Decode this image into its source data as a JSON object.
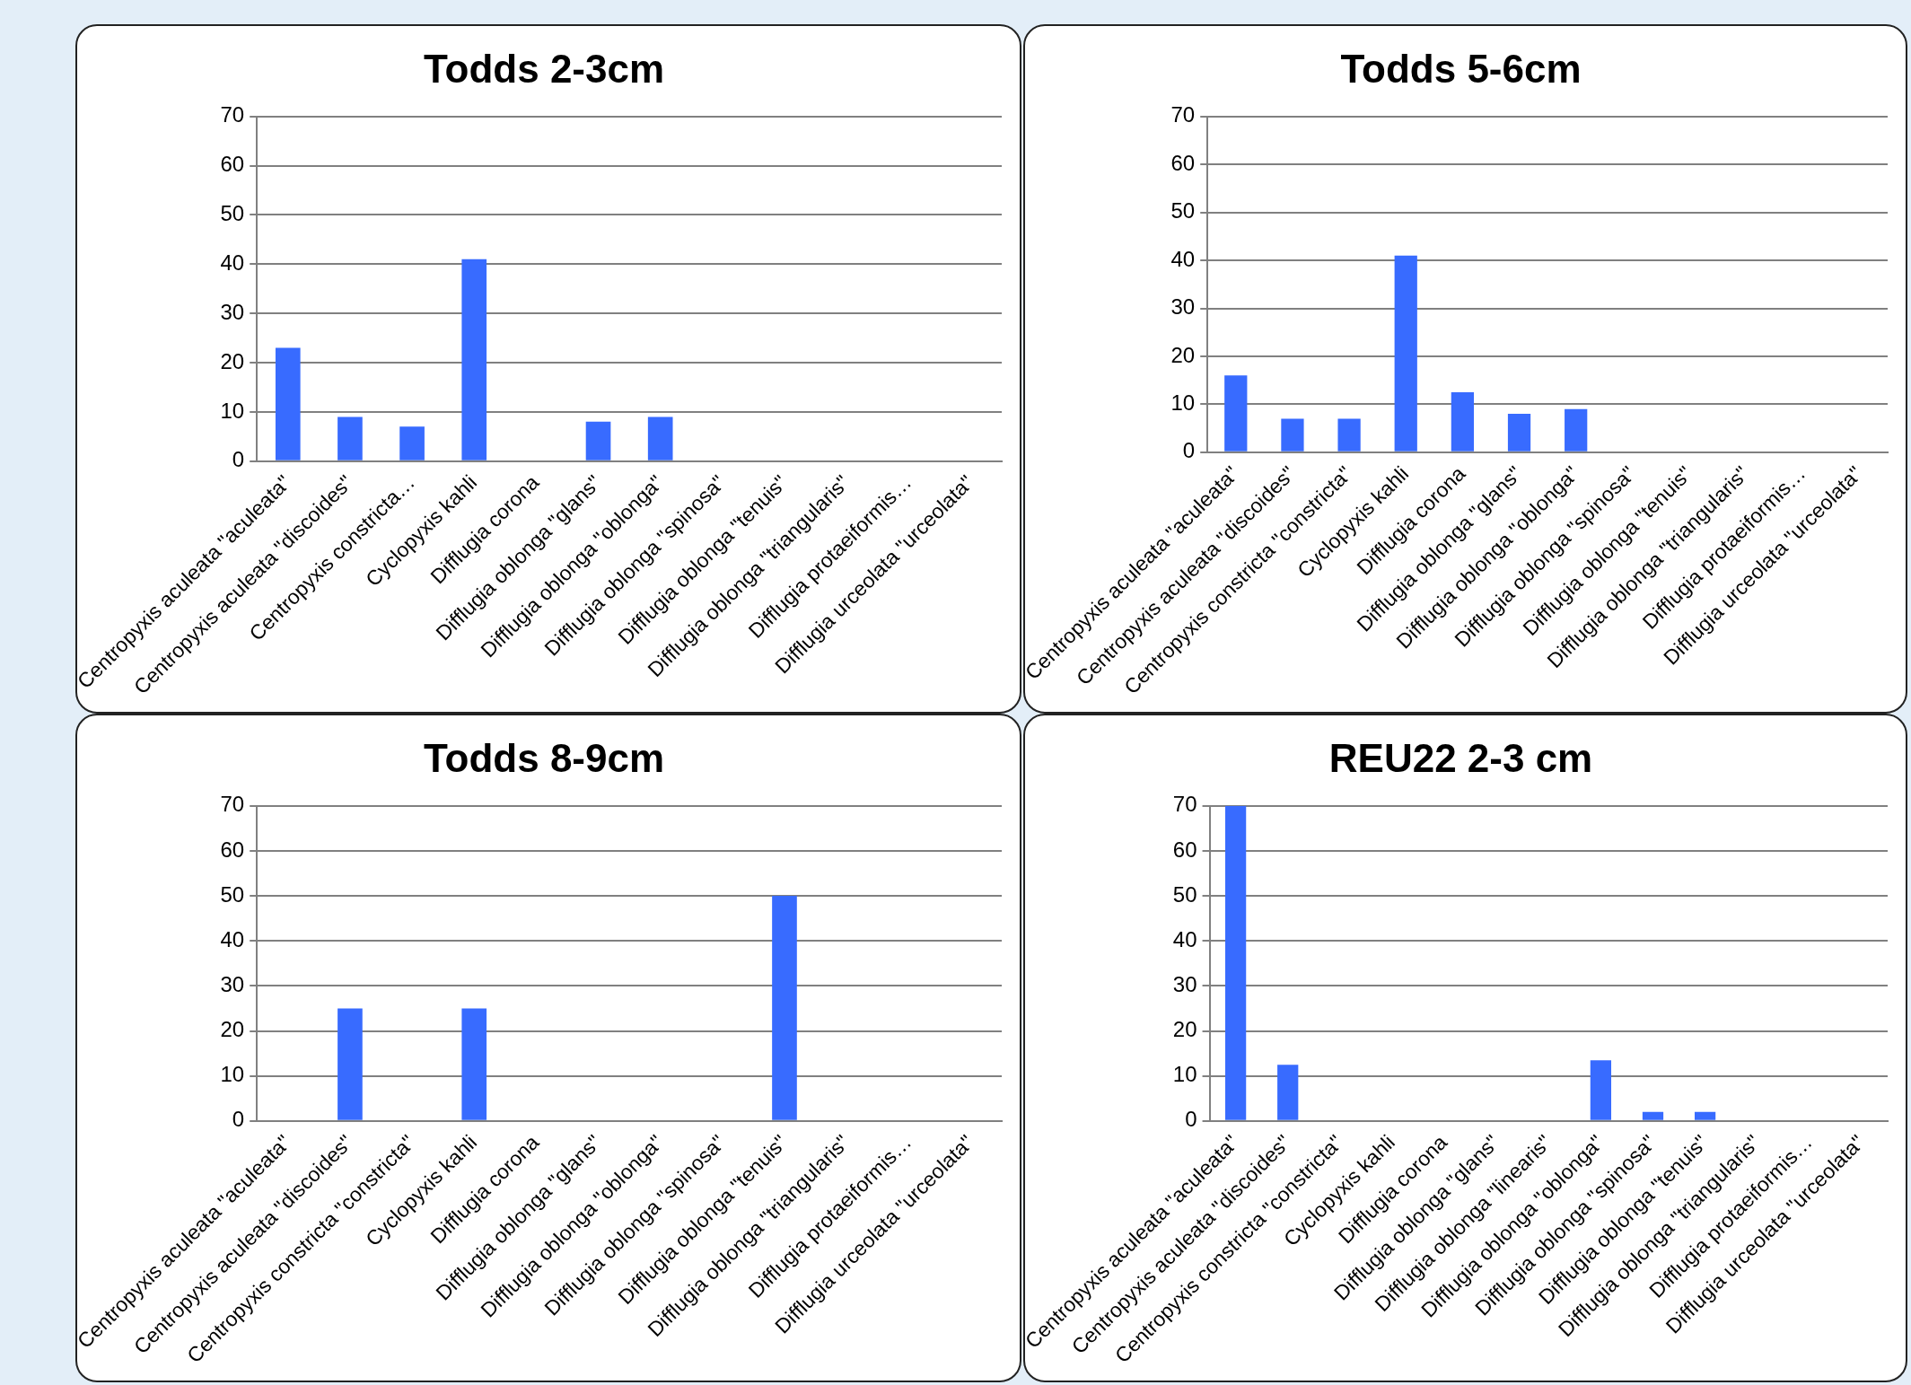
{
  "chart_data": [
    {
      "type": "bar",
      "title": "Todds 2-3cm",
      "categories": [
        "Centropyxis aculeata \"aculeata\"",
        "Centropyxis aculeata \"discoides\"",
        "Centropyxis constricta…",
        "Cyclopyxis kahli",
        "Difflugia corona",
        "Difflugia oblonga \"glans\"",
        "Difflugia oblonga \"oblonga\"",
        "Difflugia oblonga \"spinosa\"",
        "Difflugia oblonga \"tenuis\"",
        "Difflugia oblonga \"triangularis\"",
        "Difflugia protaeiformis…",
        "Difflugia urceolata \"urceolata\""
      ],
      "values": [
        23,
        9,
        7,
        41,
        0,
        8,
        9,
        0,
        0,
        0,
        0,
        0
      ],
      "color": "#386bff",
      "ylim": [
        0,
        70
      ],
      "yticks": [
        0,
        10,
        20,
        30,
        40,
        50,
        60,
        70
      ],
      "grid": "y"
    },
    {
      "type": "bar",
      "title": "Todds 5-6cm",
      "categories": [
        "Centropyxis aculeata \"aculeata\"",
        "Centropyxis aculeata \"discoides\"",
        "Centropyxis constricta \"constricta\"",
        "Cyclopyxis kahli",
        "Difflugia corona",
        "Difflugia oblonga \"glans\"",
        "Difflugia oblonga \"oblonga\"",
        "Difflugia oblonga \"spinosa\"",
        "Difflugia oblonga \"tenuis\"",
        "Difflugia oblonga \"triangularis\"",
        "Difflugia protaeiformis…",
        "Difflugia urceolata \"urceolata\""
      ],
      "values": [
        16,
        7,
        7,
        41,
        12.5,
        8,
        9,
        0,
        0,
        0,
        0,
        0
      ],
      "color": "#386bff",
      "ylim": [
        0,
        70
      ],
      "yticks": [
        0,
        10,
        20,
        30,
        40,
        50,
        60,
        70
      ],
      "grid": "y"
    },
    {
      "type": "bar",
      "title": "Todds 8-9cm",
      "categories": [
        "Centropyxis aculeata \"aculeata\"",
        "Centropyxis aculeata \"discoides\"",
        "Centropyxis constricta \"constricta\"",
        "Cyclopyxis kahli",
        "Difflugia corona",
        "Difflugia oblonga \"glans\"",
        "Difflugia oblonga \"oblonga\"",
        "Difflugia oblonga \"spinosa\"",
        "Difflugia oblonga \"tenuis\"",
        "Difflugia oblonga \"triangularis\"",
        "Difflugia protaeiformis…",
        "Difflugia urceolata \"urceolata\""
      ],
      "values": [
        0,
        25,
        0,
        25,
        0,
        0,
        0,
        0,
        50,
        0,
        0,
        0
      ],
      "color": "#386bff",
      "ylim": [
        0,
        70
      ],
      "yticks": [
        0,
        10,
        20,
        30,
        40,
        50,
        60,
        70
      ],
      "grid": "y"
    },
    {
      "type": "bar",
      "title": "REU22 2-3 cm",
      "categories": [
        "Centropyxis aculeata \"aculeata\"",
        "Centropyxis aculeata \"discoides\"",
        "Centropyxis constricta \"constricta\"",
        "Cyclopyxis kahli",
        "Difflugia corona",
        "Difflugia oblonga \"glans\"",
        "Difflugia oblonga \"linearis\"",
        "Difflugia oblonga \"oblonga\"",
        "Difflugia oblonga \"spinosa\"",
        "Difflugia oblonga \"tenuis\"",
        "Difflugia oblonga \"triangularis\"",
        "Difflugia protaeiformis…",
        "Difflugia urceolata \"urceolata\""
      ],
      "values": [
        70,
        12.5,
        0,
        0,
        0,
        0,
        0,
        13.5,
        2,
        2,
        0,
        0,
        0
      ],
      "color": "#386bff",
      "ylim": [
        0,
        70
      ],
      "yticks": [
        0,
        10,
        20,
        30,
        40,
        50,
        60,
        70
      ],
      "grid": "y"
    }
  ]
}
